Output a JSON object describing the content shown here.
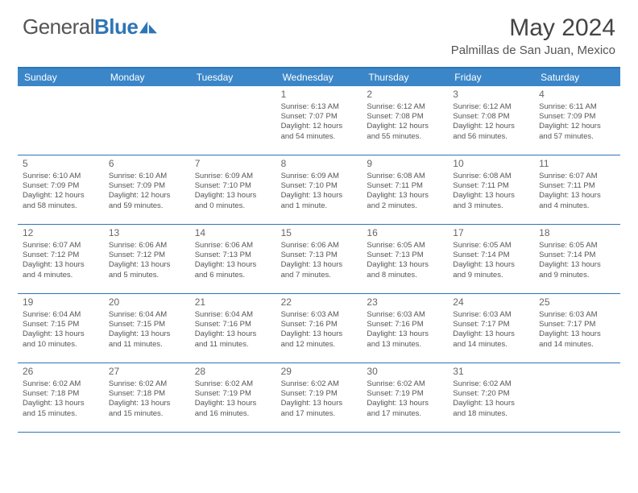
{
  "logo": {
    "text1": "General",
    "text2": "Blue"
  },
  "title": "May 2024",
  "location": "Palmillas de San Juan, Mexico",
  "daynames": [
    "Sunday",
    "Monday",
    "Tuesday",
    "Wednesday",
    "Thursday",
    "Friday",
    "Saturday"
  ],
  "header_bg": "#3b86c8",
  "border_color": "#2e75b6",
  "weeks": [
    [
      null,
      null,
      null,
      {
        "n": "1",
        "sr": "6:13 AM",
        "ss": "7:07 PM",
        "dl": "12 hours and 54 minutes."
      },
      {
        "n": "2",
        "sr": "6:12 AM",
        "ss": "7:08 PM",
        "dl": "12 hours and 55 minutes."
      },
      {
        "n": "3",
        "sr": "6:12 AM",
        "ss": "7:08 PM",
        "dl": "12 hours and 56 minutes."
      },
      {
        "n": "4",
        "sr": "6:11 AM",
        "ss": "7:09 PM",
        "dl": "12 hours and 57 minutes."
      }
    ],
    [
      {
        "n": "5",
        "sr": "6:10 AM",
        "ss": "7:09 PM",
        "dl": "12 hours and 58 minutes."
      },
      {
        "n": "6",
        "sr": "6:10 AM",
        "ss": "7:09 PM",
        "dl": "12 hours and 59 minutes."
      },
      {
        "n": "7",
        "sr": "6:09 AM",
        "ss": "7:10 PM",
        "dl": "13 hours and 0 minutes."
      },
      {
        "n": "8",
        "sr": "6:09 AM",
        "ss": "7:10 PM",
        "dl": "13 hours and 1 minute."
      },
      {
        "n": "9",
        "sr": "6:08 AM",
        "ss": "7:11 PM",
        "dl": "13 hours and 2 minutes."
      },
      {
        "n": "10",
        "sr": "6:08 AM",
        "ss": "7:11 PM",
        "dl": "13 hours and 3 minutes."
      },
      {
        "n": "11",
        "sr": "6:07 AM",
        "ss": "7:11 PM",
        "dl": "13 hours and 4 minutes."
      }
    ],
    [
      {
        "n": "12",
        "sr": "6:07 AM",
        "ss": "7:12 PM",
        "dl": "13 hours and 4 minutes."
      },
      {
        "n": "13",
        "sr": "6:06 AM",
        "ss": "7:12 PM",
        "dl": "13 hours and 5 minutes."
      },
      {
        "n": "14",
        "sr": "6:06 AM",
        "ss": "7:13 PM",
        "dl": "13 hours and 6 minutes."
      },
      {
        "n": "15",
        "sr": "6:06 AM",
        "ss": "7:13 PM",
        "dl": "13 hours and 7 minutes."
      },
      {
        "n": "16",
        "sr": "6:05 AM",
        "ss": "7:13 PM",
        "dl": "13 hours and 8 minutes."
      },
      {
        "n": "17",
        "sr": "6:05 AM",
        "ss": "7:14 PM",
        "dl": "13 hours and 9 minutes."
      },
      {
        "n": "18",
        "sr": "6:05 AM",
        "ss": "7:14 PM",
        "dl": "13 hours and 9 minutes."
      }
    ],
    [
      {
        "n": "19",
        "sr": "6:04 AM",
        "ss": "7:15 PM",
        "dl": "13 hours and 10 minutes."
      },
      {
        "n": "20",
        "sr": "6:04 AM",
        "ss": "7:15 PM",
        "dl": "13 hours and 11 minutes."
      },
      {
        "n": "21",
        "sr": "6:04 AM",
        "ss": "7:16 PM",
        "dl": "13 hours and 11 minutes."
      },
      {
        "n": "22",
        "sr": "6:03 AM",
        "ss": "7:16 PM",
        "dl": "13 hours and 12 minutes."
      },
      {
        "n": "23",
        "sr": "6:03 AM",
        "ss": "7:16 PM",
        "dl": "13 hours and 13 minutes."
      },
      {
        "n": "24",
        "sr": "6:03 AM",
        "ss": "7:17 PM",
        "dl": "13 hours and 14 minutes."
      },
      {
        "n": "25",
        "sr": "6:03 AM",
        "ss": "7:17 PM",
        "dl": "13 hours and 14 minutes."
      }
    ],
    [
      {
        "n": "26",
        "sr": "6:02 AM",
        "ss": "7:18 PM",
        "dl": "13 hours and 15 minutes."
      },
      {
        "n": "27",
        "sr": "6:02 AM",
        "ss": "7:18 PM",
        "dl": "13 hours and 15 minutes."
      },
      {
        "n": "28",
        "sr": "6:02 AM",
        "ss": "7:19 PM",
        "dl": "13 hours and 16 minutes."
      },
      {
        "n": "29",
        "sr": "6:02 AM",
        "ss": "7:19 PM",
        "dl": "13 hours and 17 minutes."
      },
      {
        "n": "30",
        "sr": "6:02 AM",
        "ss": "7:19 PM",
        "dl": "13 hours and 17 minutes."
      },
      {
        "n": "31",
        "sr": "6:02 AM",
        "ss": "7:20 PM",
        "dl": "13 hours and 18 minutes."
      },
      null
    ]
  ]
}
